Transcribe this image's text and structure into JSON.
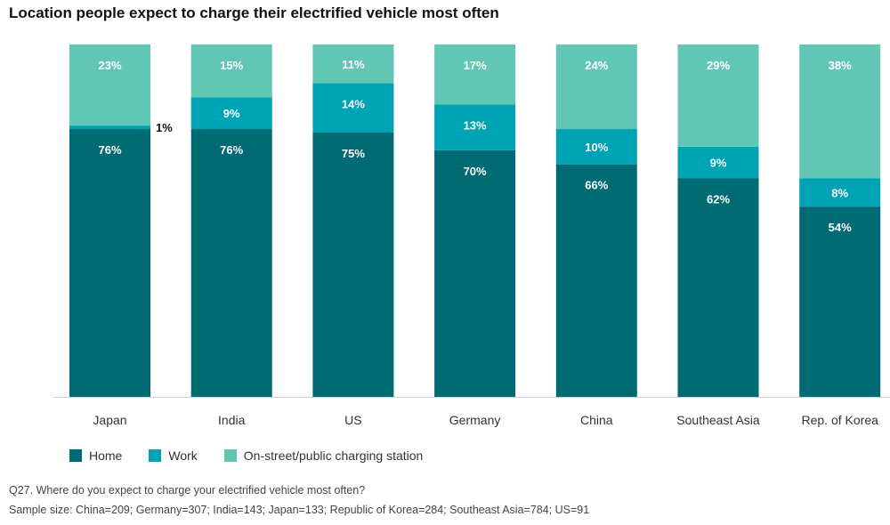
{
  "title": "Location people expect to charge their electrified vehicle most often",
  "chart_data": {
    "type": "bar",
    "stacked": true,
    "categories": [
      "Japan",
      "India",
      "US",
      "Germany",
      "China",
      "Southeast Asia",
      "Rep. of Korea"
    ],
    "series": [
      {
        "name": "Home",
        "values": [
          76,
          76,
          75,
          70,
          66,
          62,
          54
        ],
        "color": "#006b73"
      },
      {
        "name": "Work",
        "values": [
          1,
          9,
          14,
          13,
          10,
          9,
          8
        ],
        "color": "#00a3b4"
      },
      {
        "name": "On-street/public charging station",
        "values": [
          23,
          15,
          11,
          17,
          24,
          29,
          38
        ],
        "color": "#62c6b5"
      }
    ],
    "ylim": [
      0,
      100
    ],
    "grid": false,
    "legend": "bottom-left"
  },
  "footnotes": {
    "question": "Q27. Where do you expect to charge your electrified vehicle most often?",
    "sample": "Sample size: China=209; Germany=307; India=143; Japan=133; Republic of Korea=284; Southeast Asia=784; US=91"
  }
}
